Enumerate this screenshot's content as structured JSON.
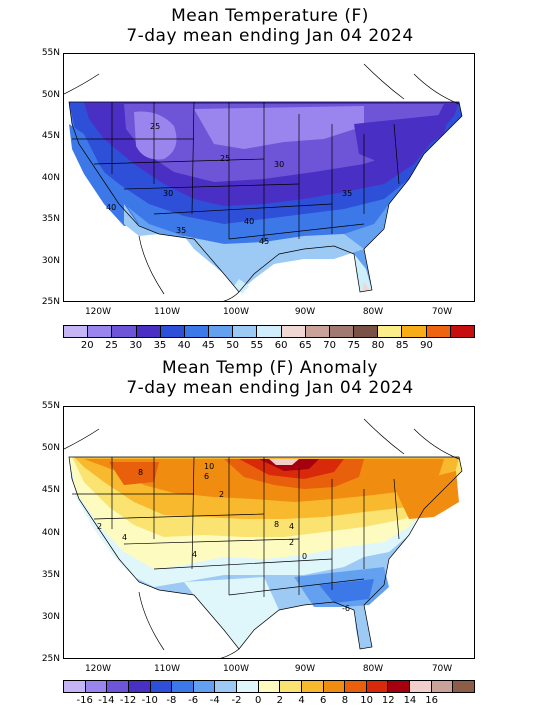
{
  "top_map": {
    "title_line1": "Mean Temperature (F)",
    "title_line2": "7-day mean ending Jan 04 2024",
    "lat_labels": [
      "55N",
      "50N",
      "45N",
      "40N",
      "35N",
      "30N",
      "25N"
    ],
    "lon_labels": [
      "120W",
      "110W",
      "100W",
      "90W",
      "80W",
      "70W"
    ],
    "contour_labels": [
      "25",
      "25",
      "30",
      "30",
      "35",
      "40",
      "35",
      "40",
      "45"
    ],
    "colorbar_colors": [
      "#c6b5f5",
      "#9a85ee",
      "#6e55d8",
      "#4a2fc4",
      "#2e4fd8",
      "#3c78e8",
      "#63a0f0",
      "#9ccaf5",
      "#cdeefa",
      "#f1d7d3",
      "#c9a39a",
      "#a07a70",
      "#7a5245",
      "#fbee8a",
      "#f8ac18",
      "#ef6410",
      "#c80f0f"
    ],
    "colorbar_labels": [
      "20",
      "25",
      "30",
      "35",
      "40",
      "45",
      "50",
      "55",
      "60",
      "65",
      "70",
      "75",
      "80",
      "85",
      "90"
    ]
  },
  "bottom_map": {
    "title_line1": "Mean Temp (F) Anomaly",
    "title_line2": "7-day mean ending Jan 04 2024",
    "lat_labels": [
      "55N",
      "50N",
      "45N",
      "40N",
      "35N",
      "30N",
      "25N"
    ],
    "lon_labels": [
      "120W",
      "110W",
      "100W",
      "90W",
      "80W",
      "70W"
    ],
    "contour_labels": [
      "10",
      "8",
      "6",
      "2",
      "2",
      "4",
      "4",
      "8",
      "4",
      "2",
      "0",
      "-6"
    ],
    "colorbar_colors": [
      "#c6b5f5",
      "#9a85ee",
      "#6e55d8",
      "#4a2fc4",
      "#2e4fd8",
      "#3c78e8",
      "#63a0f0",
      "#9ccaf5",
      "#dff6fb",
      "#fdfbc0",
      "#fbe372",
      "#f8b92f",
      "#f08c10",
      "#e85f0c",
      "#d9290b",
      "#a5000f",
      "#f2cfcb",
      "#c9a39a",
      "#8c5d48"
    ],
    "colorbar_labels": [
      "-16",
      "-14",
      "-12",
      "-10",
      "-8",
      "-6",
      "-4",
      "-2",
      "0",
      "2",
      "4",
      "6",
      "8",
      "10",
      "12",
      "14",
      "16"
    ]
  }
}
